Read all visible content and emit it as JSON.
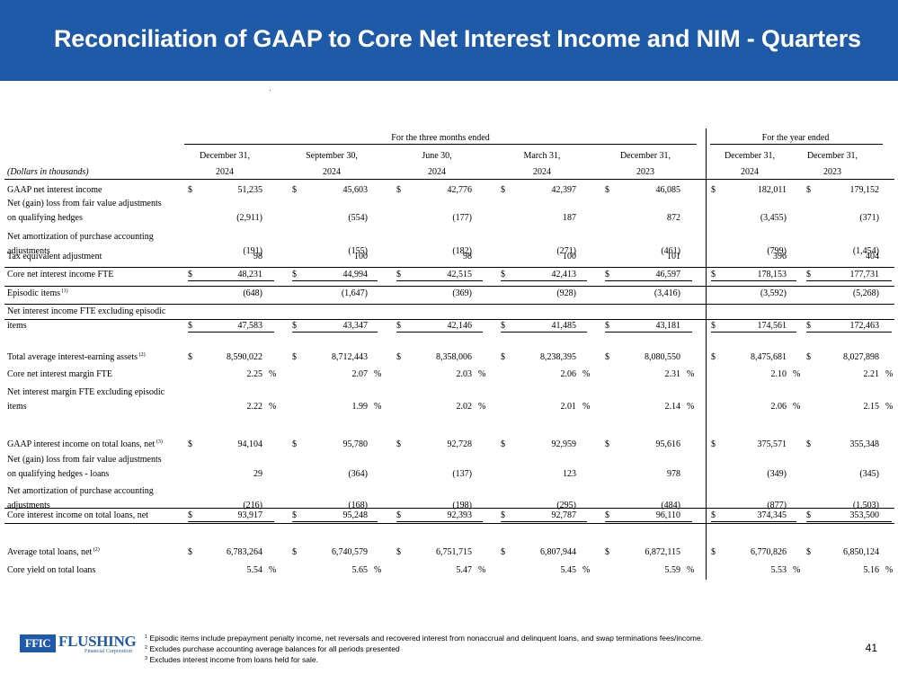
{
  "title": "Reconciliation of GAAP to Core Net Interest Income and NIM - Quarters",
  "header": {
    "group_quarters": "For the three months ended",
    "group_year": "For the year ended",
    "units_label": "(Dollars in thousands)",
    "columns": [
      {
        "line1": "December 31,",
        "line2": "2024"
      },
      {
        "line1": "September 30,",
        "line2": "2024"
      },
      {
        "line1": "June 30,",
        "line2": "2024"
      },
      {
        "line1": "March 31,",
        "line2": "2024"
      },
      {
        "line1": "December 31,",
        "line2": "2023"
      },
      {
        "line1": "December 31,",
        "line2": "2024"
      },
      {
        "line1": "December 31,",
        "line2": "2023"
      }
    ]
  },
  "rows": [
    {
      "label": [
        "GAAP net interest income"
      ],
      "dollar": "$",
      "values": [
        "51,235",
        "45,603",
        "42,776",
        "42,397",
        "46,085",
        "182,011",
        "179,152"
      ]
    },
    {
      "label": [
        "Net (gain) loss from fair value adjustments",
        "on qualifying hedges"
      ],
      "values": [
        "(2,911)",
        "(554)",
        "(177)",
        "187",
        "872",
        "(3,455)",
        "(371)"
      ]
    },
    {
      "label": [
        "Net amortization of purchase accounting",
        "adjustments"
      ],
      "values": [
        "(191)",
        "(155)",
        "(182)",
        "(271)",
        "(461)",
        "(799)",
        "(1,454)"
      ]
    },
    {
      "label": [
        "Tax equivalent adjustment"
      ],
      "values": [
        "98",
        "100",
        "98",
        "100",
        "101",
        "396",
        "404"
      ]
    },
    {
      "label": [
        "Core net interest income FTE"
      ],
      "dollar": "$",
      "values": [
        "48,231",
        "44,994",
        "42,515",
        "42,413",
        "46,597",
        "178,153",
        "177,731"
      ]
    },
    {
      "label": [
        "Episodic items"
      ],
      "sup": "(1)",
      "values": [
        "(648)",
        "(1,647)",
        "(369)",
        "(928)",
        "(3,416)",
        "(3,592)",
        "(5,268)"
      ]
    },
    {
      "label": [
        "Net interest income FTE excluding episodic",
        "items"
      ],
      "dollar": "$",
      "values": [
        "47,583",
        "43,347",
        "42,146",
        "41,485",
        "43,181",
        "174,561",
        "172,463"
      ]
    },
    {
      "label": [
        "Total average interest-earning assets"
      ],
      "sup": "(2)",
      "dollar": "$",
      "values": [
        "8,590,022",
        "8,712,443",
        "8,358,006",
        "8,238,395",
        "8,080,550",
        "8,475,681",
        "8,027,898"
      ]
    },
    {
      "label": [
        "Core net interest margin FTE"
      ],
      "pct": "%",
      "values": [
        "2.25",
        "2.07",
        "2.03",
        "2.06",
        "2.31",
        "2.10",
        "2.21"
      ]
    },
    {
      "label": [
        "Net interest margin FTE excluding episodic",
        "items"
      ],
      "pct": "%",
      "values": [
        "2.22",
        "1.99",
        "2.02",
        "2.01",
        "2.14",
        "2.06",
        "2.15"
      ]
    },
    {
      "label": [
        "GAAP interest income on total loans, net"
      ],
      "sup": "(3)",
      "dollar": "$",
      "values": [
        "94,104",
        "95,780",
        "92,728",
        "92,959",
        "95,616",
        "375,571",
        "355,348"
      ]
    },
    {
      "label": [
        "Net (gain) loss from fair value adjustments",
        "on qualifying hedges - loans"
      ],
      "values": [
        "29",
        "(364)",
        "(137)",
        "123",
        "978",
        "(349)",
        "(345)"
      ]
    },
    {
      "label": [
        "Net amortization of purchase accounting",
        "adjustments"
      ],
      "values": [
        "(216)",
        "(168)",
        "(198)",
        "(295)",
        "(484)",
        "(877)",
        "(1,503)"
      ]
    },
    {
      "label": [
        "Core interest income on total loans, net"
      ],
      "dollar": "$",
      "values": [
        "93,917",
        "95,248",
        "92,393",
        "92,787",
        "96,110",
        "374,345",
        "353,500"
      ]
    },
    {
      "label": [
        "Average total loans, net"
      ],
      "sup": "(2)",
      "dollar": "$",
      "values": [
        "6,783,264",
        "6,740,579",
        "6,751,715",
        "6,807,944",
        "6,872,115",
        "6,770,826",
        "6,850,124"
      ]
    },
    {
      "label": [
        "Core yield on total loans"
      ],
      "pct": "%",
      "values": [
        "5.54",
        "5.65",
        "5.47",
        "5.45",
        "5.59",
        "5.53",
        "5.16"
      ]
    }
  ],
  "footnotes": [
    {
      "mark": "1",
      "text": "Episodic items include prepayment penalty income, net reversals and recovered interest from nonaccrual and delinquent loans, and swap terminations fees/income."
    },
    {
      "mark": "2",
      "text": "Excludes purchase accounting average balances for all periods presented"
    },
    {
      "mark": "3",
      "text": "Excludes interest income from loans held for sale."
    }
  ],
  "logo": {
    "box_text": "FFIC",
    "word": "FLUSHING",
    "sub": "Financial Corporation"
  },
  "page_number": "41",
  "colors": {
    "brand_blue": "#1f5aa8",
    "title_text": "#ffffff"
  }
}
